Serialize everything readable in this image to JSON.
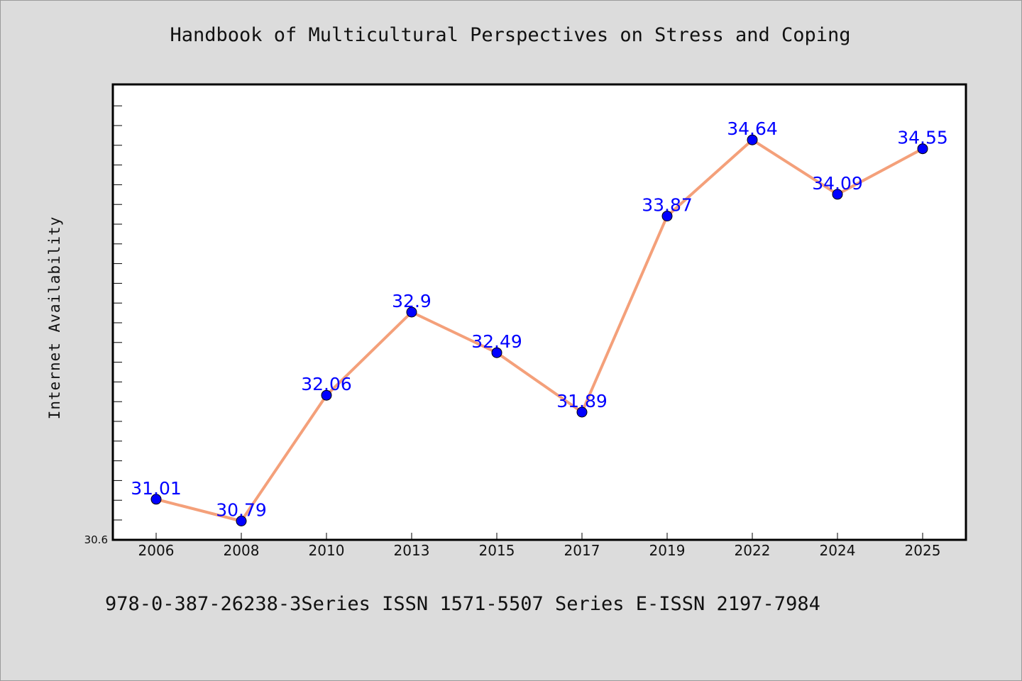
{
  "chart_data": {
    "type": "line",
    "title": "Handbook of Multicultural Perspectives on Stress and Coping",
    "ylabel": "Internet Availability",
    "xlabel": "",
    "footer": "978-0-387-26238-3Series ISSN 1571-5507 Series E-ISSN 2197-7984",
    "categories": [
      "2006",
      "2008",
      "2010",
      "2013",
      "2015",
      "2017",
      "2019",
      "2022",
      "2024",
      "2025"
    ],
    "values": [
      31.01,
      30.79,
      32.06,
      32.9,
      32.49,
      31.89,
      33.87,
      34.64,
      34.09,
      34.55
    ],
    "data_labels": [
      "31.01",
      "30.79",
      "32.06",
      "32.9",
      "32.49",
      "31.89",
      "33.87",
      "34.64",
      "34.09",
      "34.55"
    ],
    "y_tick_labels": [
      "30.6"
    ],
    "ylim": [
      30.6,
      35.2
    ],
    "grid": false,
    "line_color": "#f4a07a",
    "marker_color": "#0000ff",
    "label_color": "#0000ff",
    "plot_background": "#ffffff",
    "page_background": "#dcdcdc"
  }
}
